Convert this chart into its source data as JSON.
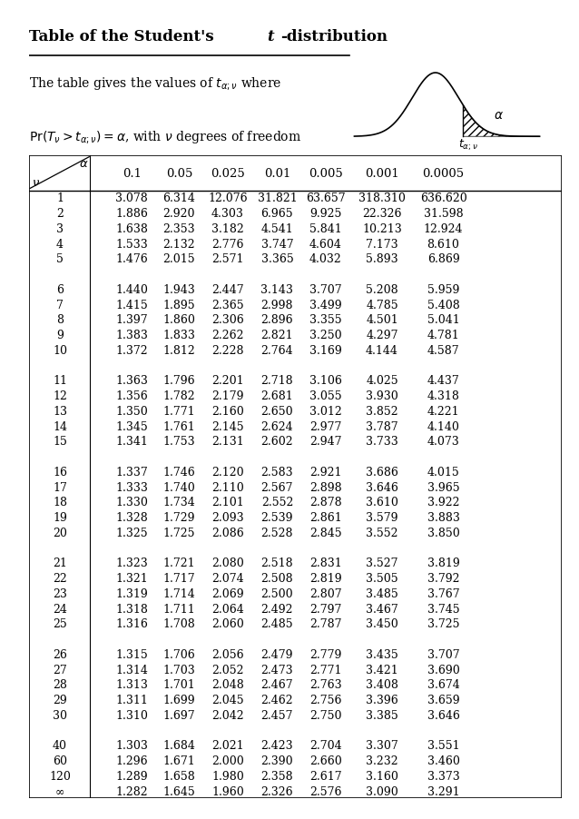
{
  "title_plain": "Table of the Student's ",
  "title_italic": "t",
  "title_end": "-distribution",
  "alpha_values": [
    "0.1",
    "0.05",
    "0.025",
    "0.01",
    "0.005",
    "0.001",
    "0.0005"
  ],
  "rows": [
    {
      "nu": "1",
      "vals": [
        3.078,
        6.314,
        12.076,
        31.821,
        63.657,
        318.31,
        636.62
      ]
    },
    {
      "nu": "2",
      "vals": [
        1.886,
        2.92,
        4.303,
        6.965,
        9.925,
        22.326,
        31.598
      ]
    },
    {
      "nu": "3",
      "vals": [
        1.638,
        2.353,
        3.182,
        4.541,
        5.841,
        10.213,
        12.924
      ]
    },
    {
      "nu": "4",
      "vals": [
        1.533,
        2.132,
        2.776,
        3.747,
        4.604,
        7.173,
        8.61
      ]
    },
    {
      "nu": "5",
      "vals": [
        1.476,
        2.015,
        2.571,
        3.365,
        4.032,
        5.893,
        6.869
      ]
    },
    {
      "nu": "6",
      "vals": [
        1.44,
        1.943,
        2.447,
        3.143,
        3.707,
        5.208,
        5.959
      ]
    },
    {
      "nu": "7",
      "vals": [
        1.415,
        1.895,
        2.365,
        2.998,
        3.499,
        4.785,
        5.408
      ]
    },
    {
      "nu": "8",
      "vals": [
        1.397,
        1.86,
        2.306,
        2.896,
        3.355,
        4.501,
        5.041
      ]
    },
    {
      "nu": "9",
      "vals": [
        1.383,
        1.833,
        2.262,
        2.821,
        3.25,
        4.297,
        4.781
      ]
    },
    {
      "nu": "10",
      "vals": [
        1.372,
        1.812,
        2.228,
        2.764,
        3.169,
        4.144,
        4.587
      ]
    },
    {
      "nu": "11",
      "vals": [
        1.363,
        1.796,
        2.201,
        2.718,
        3.106,
        4.025,
        4.437
      ]
    },
    {
      "nu": "12",
      "vals": [
        1.356,
        1.782,
        2.179,
        2.681,
        3.055,
        3.93,
        4.318
      ]
    },
    {
      "nu": "13",
      "vals": [
        1.35,
        1.771,
        2.16,
        2.65,
        3.012,
        3.852,
        4.221
      ]
    },
    {
      "nu": "14",
      "vals": [
        1.345,
        1.761,
        2.145,
        2.624,
        2.977,
        3.787,
        4.14
      ]
    },
    {
      "nu": "15",
      "vals": [
        1.341,
        1.753,
        2.131,
        2.602,
        2.947,
        3.733,
        4.073
      ]
    },
    {
      "nu": "16",
      "vals": [
        1.337,
        1.746,
        2.12,
        2.583,
        2.921,
        3.686,
        4.015
      ]
    },
    {
      "nu": "17",
      "vals": [
        1.333,
        1.74,
        2.11,
        2.567,
        2.898,
        3.646,
        3.965
      ]
    },
    {
      "nu": "18",
      "vals": [
        1.33,
        1.734,
        2.101,
        2.552,
        2.878,
        3.61,
        3.922
      ]
    },
    {
      "nu": "19",
      "vals": [
        1.328,
        1.729,
        2.093,
        2.539,
        2.861,
        3.579,
        3.883
      ]
    },
    {
      "nu": "20",
      "vals": [
        1.325,
        1.725,
        2.086,
        2.528,
        2.845,
        3.552,
        3.85
      ]
    },
    {
      "nu": "21",
      "vals": [
        1.323,
        1.721,
        2.08,
        2.518,
        2.831,
        3.527,
        3.819
      ]
    },
    {
      "nu": "22",
      "vals": [
        1.321,
        1.717,
        2.074,
        2.508,
        2.819,
        3.505,
        3.792
      ]
    },
    {
      "nu": "23",
      "vals": [
        1.319,
        1.714,
        2.069,
        2.5,
        2.807,
        3.485,
        3.767
      ]
    },
    {
      "nu": "24",
      "vals": [
        1.318,
        1.711,
        2.064,
        2.492,
        2.797,
        3.467,
        3.745
      ]
    },
    {
      "nu": "25",
      "vals": [
        1.316,
        1.708,
        2.06,
        2.485,
        2.787,
        3.45,
        3.725
      ]
    },
    {
      "nu": "26",
      "vals": [
        1.315,
        1.706,
        2.056,
        2.479,
        2.779,
        3.435,
        3.707
      ]
    },
    {
      "nu": "27",
      "vals": [
        1.314,
        1.703,
        2.052,
        2.473,
        2.771,
        3.421,
        3.69
      ]
    },
    {
      "nu": "28",
      "vals": [
        1.313,
        1.701,
        2.048,
        2.467,
        2.763,
        3.408,
        3.674
      ]
    },
    {
      "nu": "29",
      "vals": [
        1.311,
        1.699,
        2.045,
        2.462,
        2.756,
        3.396,
        3.659
      ]
    },
    {
      "nu": "30",
      "vals": [
        1.31,
        1.697,
        2.042,
        2.457,
        2.75,
        3.385,
        3.646
      ]
    },
    {
      "nu": "40",
      "vals": [
        1.303,
        1.684,
        2.021,
        2.423,
        2.704,
        3.307,
        3.551
      ]
    },
    {
      "nu": "60",
      "vals": [
        1.296,
        1.671,
        2.0,
        2.39,
        2.66,
        3.232,
        3.46
      ]
    },
    {
      "nu": "120",
      "vals": [
        1.289,
        1.658,
        1.98,
        2.358,
        2.617,
        3.16,
        3.373
      ]
    },
    {
      "nu": "∞",
      "vals": [
        1.282,
        1.645,
        1.96,
        2.326,
        2.576,
        3.09,
        3.291
      ]
    }
  ],
  "group_break_nus": [
    "5",
    "10",
    "15",
    "20",
    "25",
    "30"
  ],
  "bg_color": "#ffffff",
  "text_color": "#000000",
  "font_size": 9.0,
  "header_font_size": 9.5
}
